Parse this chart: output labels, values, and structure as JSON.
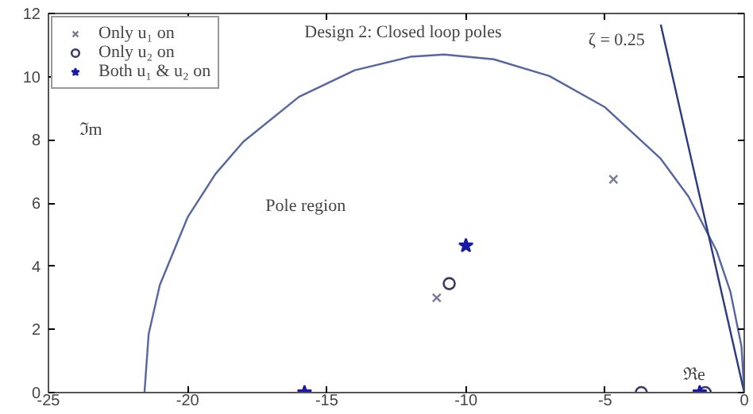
{
  "chart_data": {
    "type": "scatter",
    "title": "Design 2: Closed loop poles",
    "xlabel": "ℜe",
    "ylabel": "ℑm",
    "annotations": [
      "Pole region",
      {
        "text": "ζ = 0.25",
        "x": -3.0,
        "y": 11.65
      }
    ],
    "xlim": [
      -25,
      0
    ],
    "ylim": [
      0,
      12
    ],
    "xticks": [
      -25,
      -20,
      -15,
      -10,
      -5,
      0
    ],
    "yticks": [
      0,
      2,
      4,
      6,
      8,
      10,
      12
    ],
    "grid": false,
    "legend": "top left",
    "series": [
      {
        "name": "Only u₁ on",
        "marker": "cross",
        "color": "#7a7a99",
        "x": [
          -4.7,
          -11.05
        ],
        "values": [
          6.75,
          3.0
        ]
      },
      {
        "name": "Only u₂ on",
        "marker": "circle",
        "color": "#3a3a6a",
        "x": [
          -10.6,
          -3.7,
          -1.4
        ],
        "values": [
          3.45,
          0,
          0
        ]
      },
      {
        "name": "Both u₁ & u₂ on",
        "marker": "star",
        "color": "#1a1aa8",
        "x": [
          -10.0,
          -15.8,
          -1.6
        ],
        "values": [
          4.65,
          0,
          0
        ]
      },
      {
        "type": "line",
        "marker": "none",
        "color": "#5566a0",
        "x": [
          -21.55,
          -21.4,
          -21,
          -20,
          -19,
          -18,
          -16,
          -14,
          -12,
          -10.78,
          -9,
          -7,
          -5,
          -3,
          -2,
          -1,
          -0.5,
          -0.1,
          0
        ],
        "values": [
          0,
          1.85,
          3.4,
          5.55,
          6.92,
          7.94,
          9.36,
          10.2,
          10.63,
          10.7,
          10.55,
          10.02,
          9.03,
          7.4,
          6.2,
          4.5,
          3.2,
          1.46,
          0
        ]
      },
      {
        "type": "line",
        "marker": "none",
        "color": "#2a3a80",
        "x": [
          -3.0,
          0
        ],
        "values": [
          11.65,
          0
        ]
      }
    ]
  }
}
